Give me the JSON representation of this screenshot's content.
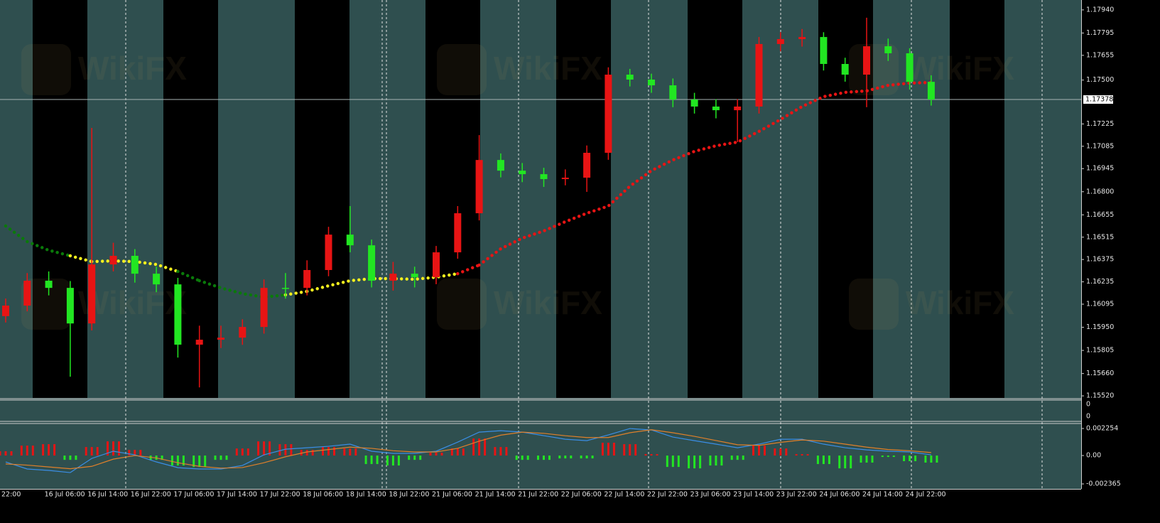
{
  "watermark": "WikiFX",
  "chart_data": [
    {
      "type": "candlestick",
      "categories": [
        "22:00",
        null,
        "16 Jul 06:00",
        null,
        "16 Jul 14:00",
        null,
        "16 Jul 22:00",
        null,
        "17 Jul 06:00",
        null,
        "17 Jul 14:00",
        null,
        "17 Jul 22:00",
        null,
        "18 Jul 06:00",
        null,
        "18 Jul 14:00",
        null,
        "18 Jul 22:00",
        null,
        "21 Jul 06:00",
        null,
        "21 Jul 14:00",
        null,
        "21 Jul 22:00",
        null,
        "22 Jul 06:00",
        null,
        "22 Jul 14:00",
        null,
        "22 Jul 22:00",
        null,
        "23 Jul 06:00",
        null,
        "23 Jul 14:00",
        null,
        "23 Jul 22:00",
        null,
        "24 Jul 06:00",
        null,
        "24 Jul 14:00",
        null,
        "24 Jul 22:00",
        null
      ],
      "open": [
        1.1602,
        1.16086,
        1.16242,
        1.16197,
        1.15974,
        1.16344,
        1.16398,
        1.16286,
        1.16219,
        1.15841,
        1.15872,
        1.15885,
        1.15952,
        1.16197,
        1.16197,
        1.16309,
        1.16531,
        1.16464,
        1.16242,
        1.16286,
        1.16264,
        1.1642,
        1.16665,
        1.16999,
        1.16932,
        1.1691,
        1.16879,
        1.16888,
        1.17044,
        1.17534,
        1.17503,
        1.17467,
        1.17378,
        1.17334,
        1.17311,
        1.17334,
        1.17726,
        1.17757,
        1.1777,
        1.17601,
        1.17534,
        1.17712,
        1.17668,
        1.17489
      ],
      "high": [
        1.1613,
        1.1629,
        1.163,
        1.1624,
        1.172,
        1.1648,
        1.1644,
        1.1633,
        1.1626,
        1.1596,
        1.1596,
        1.16,
        1.1625,
        1.1629,
        1.1637,
        1.1658,
        1.1671,
        1.165,
        1.1636,
        1.1633,
        1.1646,
        1.1671,
        1.17155,
        1.1704,
        1.1698,
        1.1695,
        1.1694,
        1.1709,
        1.1758,
        1.1757,
        1.1754,
        1.1751,
        1.1742,
        1.1738,
        1.1738,
        1.1777,
        1.178,
        1.1782,
        1.178,
        1.1764,
        1.17891,
        1.1776,
        1.177,
        1.1753
      ],
      "low": [
        1.1598,
        1.1605,
        1.1615,
        1.1564,
        1.1593,
        1.163,
        1.1623,
        1.1617,
        1.1576,
        1.15573,
        1.1582,
        1.1584,
        1.1591,
        1.1613,
        1.1615,
        1.1627,
        1.1642,
        1.162,
        1.1618,
        1.162,
        1.1622,
        1.1638,
        1.1662,
        1.1689,
        1.1686,
        1.1683,
        1.1684,
        1.16799,
        1.17,
        1.1746,
        1.1742,
        1.1733,
        1.1729,
        1.1726,
        1.17111,
        1.1729,
        1.1768,
        1.1771,
        1.1756,
        1.1749,
        1.1733,
        1.1762,
        1.1744,
        1.1734
      ],
      "close": [
        1.16086,
        1.16242,
        1.16197,
        1.15974,
        1.16344,
        1.16398,
        1.16286,
        1.16219,
        1.15841,
        1.15872,
        1.15885,
        1.15952,
        1.16197,
        1.16197,
        1.16309,
        1.16531,
        1.16464,
        1.16242,
        1.16286,
        1.16264,
        1.1642,
        1.16665,
        1.16999,
        1.16932,
        1.1691,
        1.16879,
        1.16888,
        1.17044,
        1.17534,
        1.17503,
        1.17467,
        1.17378,
        1.17334,
        1.17311,
        1.17334,
        1.17726,
        1.17757,
        1.1777,
        1.17601,
        1.17534,
        1.17712,
        1.17668,
        1.17489,
        1.17378
      ],
      "up_color": "#e81414",
      "down_color": "#22e622",
      "ma": [
        1.16585,
        1.16487,
        1.16433,
        1.16398,
        1.16362,
        1.16366,
        1.16362,
        1.16344,
        1.163,
        1.16242,
        1.16197,
        1.16161,
        1.16139,
        1.16153,
        1.16175,
        1.1621,
        1.16242,
        1.16255,
        1.16255,
        1.16251,
        1.16264,
        1.16286,
        1.1634,
        1.16442,
        1.16509,
        1.16554,
        1.16612,
        1.16665,
        1.1671,
        1.16834,
        1.16932,
        1.16999,
        1.17053,
        1.17088,
        1.17111,
        1.17178,
        1.17253,
        1.17334,
        1.17396,
        1.17423,
        1.17432,
        1.17467,
        1.17481,
        1.17485
      ],
      "ma_colors": [
        "#0a7a0a",
        "#0a7a0a",
        "#0a7a0a",
        "#0a7a0a",
        "#f5f01e",
        "#f5f01e",
        "#f5f01e",
        "#f5f01e",
        "#f5f01e",
        "#0a7a0a",
        "#0a7a0a",
        "#0a7a0a",
        "#0a7a0a",
        "#0a7a0a",
        "#f5f01e",
        "#f5f01e",
        "#f5f01e",
        "#f5f01e",
        "#f5f01e",
        "#f5f01e",
        "#f5f01e",
        "#f5f01e",
        "#e81414",
        "#e81414",
        "#e81414",
        "#e81414",
        "#e81414",
        "#e81414",
        "#e81414",
        "#e81414",
        "#e81414",
        "#e81414",
        "#e81414",
        "#e81414",
        "#e81414",
        "#e81414",
        "#e81414",
        "#e81414",
        "#e81414",
        "#e81414",
        "#e81414",
        "#e81414",
        "#e81414",
        "#e81414"
      ],
      "current_price": 1.17378,
      "ylim": [
        1.15507,
        1.18002
      ],
      "yticks": [
        {
          "value": 1.1794,
          "label": "1.17940"
        },
        {
          "value": 1.17795,
          "label": "1.17795"
        },
        {
          "value": 1.17655,
          "label": "1.17655"
        },
        {
          "value": 1.175,
          "label": "1.17500"
        },
        {
          "value": 1.17225,
          "label": "1.17225"
        },
        {
          "value": 1.17085,
          "label": "1.17085"
        },
        {
          "value": 1.16945,
          "label": "1.16945"
        },
        {
          "value": 1.168,
          "label": "1.16800"
        },
        {
          "value": 1.16655,
          "label": "1.16655"
        },
        {
          "value": 1.16515,
          "label": "1.16515"
        },
        {
          "value": 1.16375,
          "label": "1.16375"
        },
        {
          "value": 1.16235,
          "label": "1.16235"
        },
        {
          "value": 1.16095,
          "label": "1.16095"
        },
        {
          "value": 1.1595,
          "label": "1.15950"
        },
        {
          "value": 1.15805,
          "label": "1.15805"
        },
        {
          "value": 1.1566,
          "label": "1.15660"
        },
        {
          "value": 1.1552,
          "label": "1.15520"
        }
      ]
    },
    {
      "type": "line",
      "yticks": [
        0,
        0
      ]
    },
    {
      "type": "bar",
      "values": [
        0.00036,
        0.00083,
        0.00095,
        -0.00036,
        0.00071,
        0.00118,
        0.00047,
        -0.00036,
        -0.00083,
        -0.00095,
        -0.00036,
        0.00059,
        0.00118,
        0.00095,
        0.00047,
        0.00071,
        0.00059,
        -0.00071,
        -0.00083,
        -0.00036,
        0.00024,
        0.00059,
        0.00142,
        0.00071,
        -0.00036,
        -0.00036,
        -0.00024,
        -0.00024,
        0.00107,
        0.00095,
        0.00012,
        -0.00095,
        -0.00107,
        -0.00083,
        -0.00036,
        0.00083,
        0.00059,
        0.00012,
        -0.00071,
        -0.00107,
        -0.00059,
        -0.00012,
        -0.00047,
        -0.00059
      ],
      "up_color": "#e81414",
      "down_color": "#22e622",
      "series": [
        {
          "color": "#3a8ee6",
          "values": [
            -0.00053,
            -0.00112,
            -0.00124,
            -0.00142,
            -0.00024,
            0.00036,
            6e-05,
            -0.00053,
            -0.00101,
            -0.00112,
            -0.00112,
            -0.00083,
            6e-05,
            0.00053,
            0.00065,
            0.00077,
            0.00095,
            0.00036,
            0.00018,
            0.00018,
            0.00036,
            0.00112,
            0.00195,
            0.00207,
            0.00195,
            0.00166,
            0.00136,
            0.00124,
            0.00172,
            0.00225,
            0.00213,
            0.00154,
            0.00124,
            0.00095,
            0.00065,
            0.00095,
            0.00136,
            0.00136,
            0.00095,
            0.00065,
            0.00047,
            0.00036,
            0.0003,
            6e-05
          ]
        },
        {
          "color": "#e0802a",
          "values": [
            -0.0007,
            -0.0008,
            -0.00095,
            -0.0011,
            -0.0009,
            -0.0003,
            0,
            -0.0002,
            -0.0006,
            -0.0009,
            -0.00105,
            -0.001,
            -0.0006,
            -0.0001,
            0.0003,
            0.0005,
            0.0007,
            0.0006,
            0.0004,
            0.0003,
            0.0003,
            0.0006,
            0.0012,
            0.0017,
            0.00195,
            0.00185,
            0.00165,
            0.0015,
            0.0015,
            0.0019,
            0.00215,
            0.0019,
            0.0016,
            0.00125,
            0.0009,
            0.00085,
            0.0011,
            0.0013,
            0.0012,
            0.00095,
            0.0007,
            0.0005,
            0.0004,
            0.00025
          ]
        }
      ],
      "ylim": [
        -0.00278,
        0.00261
      ],
      "yticks": [
        0.002254,
        {
          "value": 0,
          "label": "0.00"
        },
        -0.002365
      ]
    }
  ]
}
